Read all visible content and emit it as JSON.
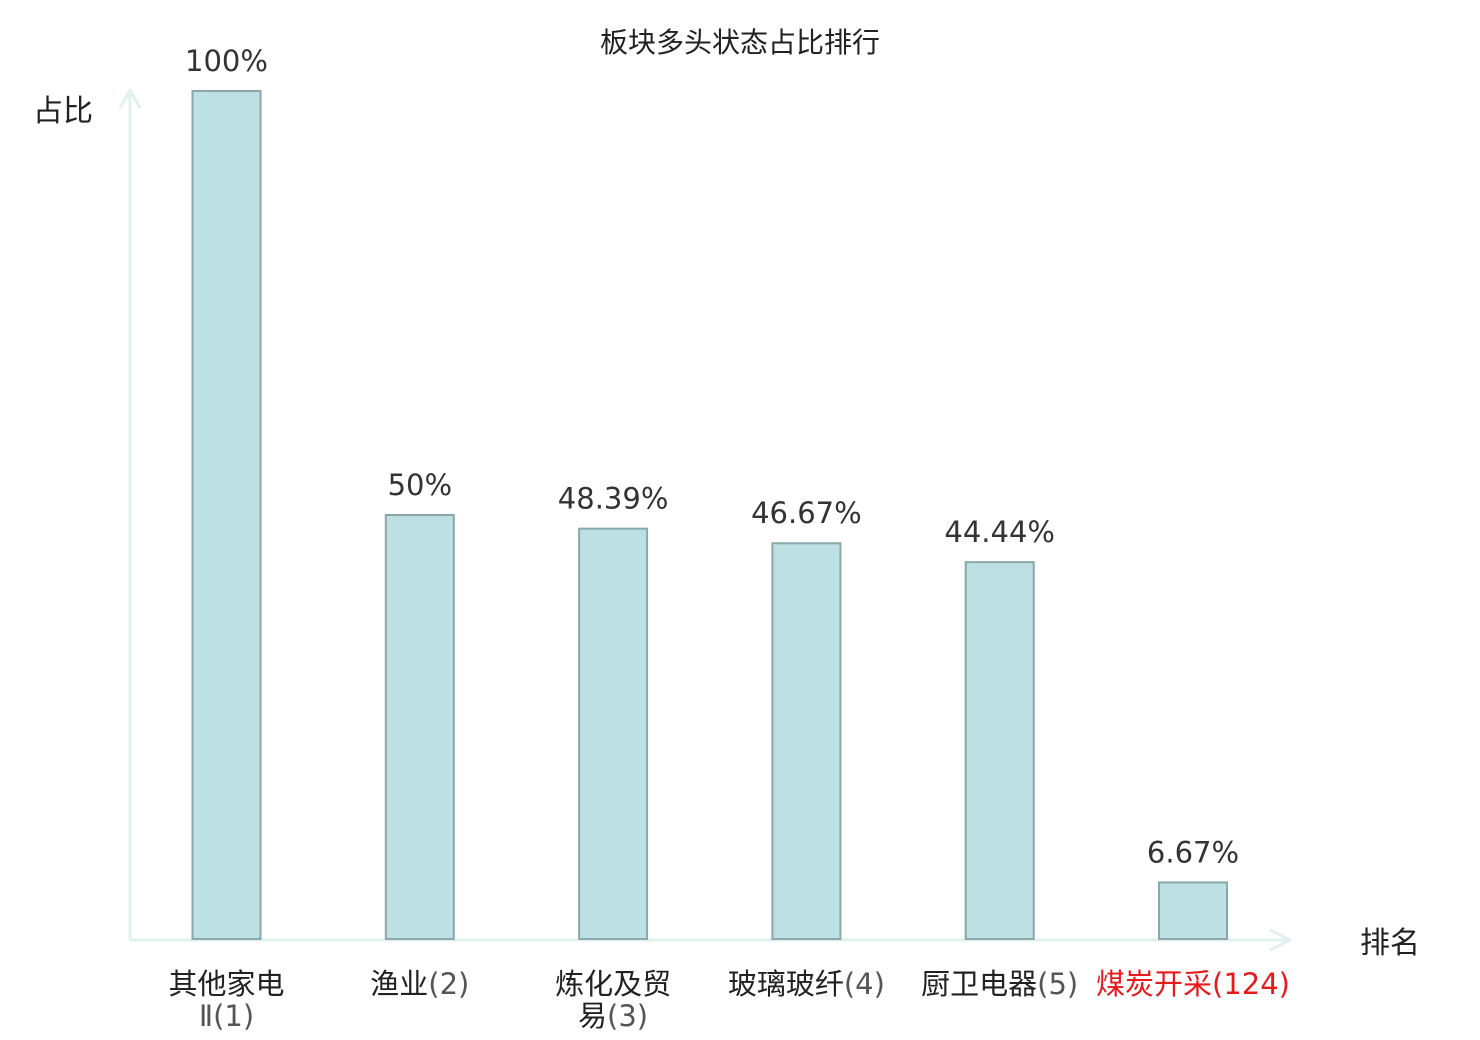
{
  "chart_data": {
    "type": "bar",
    "title": "板块多头状态占比排行",
    "ylabel": "占比",
    "xlabel": "排名",
    "ylim": [
      0,
      100
    ],
    "grid": false,
    "categories": [
      {
        "name": "其他家电Ⅱ",
        "rank": "(1)",
        "lines": [
          [
            {
              "t": "其他家电",
              "s": "main"
            }
          ],
          [
            {
              "t": "Ⅱ(1)",
              "s": "rank"
            }
          ]
        ]
      },
      {
        "name": "渔业",
        "rank": "(2)",
        "lines": [
          [
            {
              "t": "渔业",
              "s": "main"
            },
            {
              "t": "(2)",
              "s": "rank"
            }
          ]
        ]
      },
      {
        "name": "炼化及贸易",
        "rank": "(3)",
        "lines": [
          [
            {
              "t": "炼化及贸",
              "s": "main"
            }
          ],
          [
            {
              "t": "易",
              "s": "main"
            },
            {
              "t": "(3)",
              "s": "rank"
            }
          ]
        ]
      },
      {
        "name": "玻璃玻纤",
        "rank": "(4)",
        "lines": [
          [
            {
              "t": "玻璃玻纤",
              "s": "main"
            },
            {
              "t": "(4)",
              "s": "rank"
            }
          ]
        ]
      },
      {
        "name": "厨卫电器",
        "rank": "(5)",
        "lines": [
          [
            {
              "t": "厨卫电器",
              "s": "main"
            },
            {
              "t": "(5)",
              "s": "rank"
            }
          ]
        ]
      },
      {
        "name": "煤炭开采",
        "rank": "(124)",
        "highlight": true,
        "lines": [
          [
            {
              "t": "煤炭开采",
              "s": "highlight"
            },
            {
              "t": "(124)",
              "s": "highlight"
            }
          ]
        ]
      }
    ],
    "values": [
      100,
      50,
      48.39,
      46.67,
      44.44,
      6.67
    ],
    "value_labels": [
      "100%",
      "50%",
      "48.39%",
      "46.67%",
      "44.44%",
      "6.67%"
    ],
    "colors": {
      "bar_fill": "#bde0e3",
      "bar_stroke": "#8aa8ab",
      "axis": "#e0f1ef",
      "highlight_text": "#e6191b"
    }
  }
}
